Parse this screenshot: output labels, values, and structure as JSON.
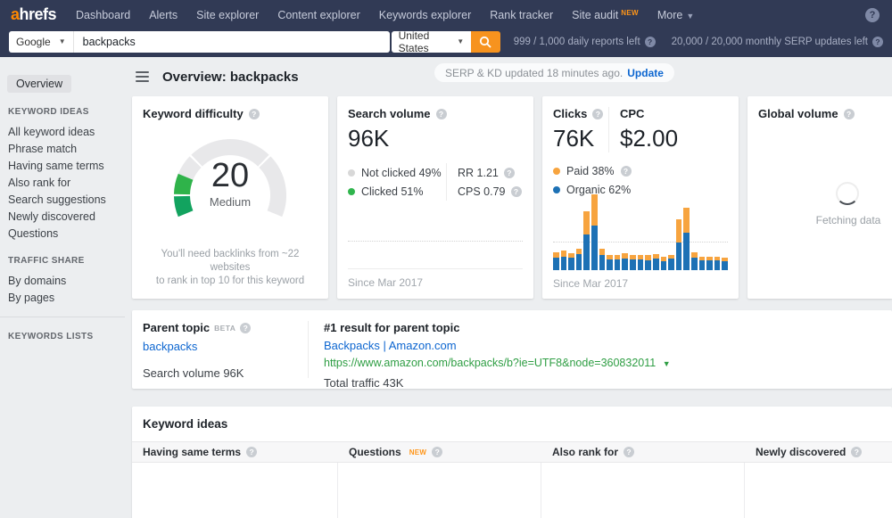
{
  "nav": {
    "logo_accent": "a",
    "logo_rest": "hrefs",
    "items": [
      "Dashboard",
      "Alerts",
      "Site explorer",
      "Content explorer",
      "Keywords explorer",
      "Rank tracker"
    ],
    "site_audit": {
      "label": "Site audit",
      "badge": "NEW"
    },
    "more_label": "More",
    "help": "?"
  },
  "search": {
    "engine": "Google",
    "query": "backpacks",
    "country": "United States",
    "daily_reports_left": "999 / 1,000 daily reports left",
    "serp_updates_left": "20,000 / 20,000 monthly SERP updates left"
  },
  "sidebar": {
    "overview": "Overview",
    "keyword_ideas": {
      "title": "KEYWORD IDEAS",
      "items": [
        "All keyword ideas",
        "Phrase match",
        "Having same terms",
        "Also rank for",
        "Search suggestions",
        "Newly discovered",
        "Questions"
      ]
    },
    "traffic_share": {
      "title": "TRAFFIC SHARE",
      "items": [
        "By domains",
        "By pages"
      ]
    },
    "keywords_lists": {
      "title": "KEYWORDS LISTS"
    }
  },
  "header": {
    "title": "Overview: backpacks",
    "update_notice": "SERP & KD updated 18 minutes ago.",
    "update_action": "Update"
  },
  "cards": {
    "keyword_difficulty": {
      "title": "Keyword difficulty",
      "value": "20",
      "level": "Medium",
      "footer_line1": "You'll need backlinks from ~22 websites",
      "footer_line2": "to rank in top 10 for this keyword"
    },
    "search_volume": {
      "title": "Search volume",
      "value": "96K",
      "not_clicked": "Not clicked 49%",
      "clicked": "Clicked 51%",
      "rr": "RR 1.21",
      "cps": "CPS 0.79",
      "since": "Since Mar 2017"
    },
    "clicks": {
      "title": "Clicks",
      "value": "76K",
      "cpc_title": "CPC",
      "cpc_value": "$2.00",
      "paid": "Paid 38%",
      "organic": "Organic 62%",
      "since": "Since Mar 2017"
    },
    "global_volume": {
      "title": "Global volume",
      "loading": "Fetching data"
    }
  },
  "parent_topic": {
    "title": "Parent topic",
    "beta": "BETA",
    "keyword": "backpacks",
    "search_volume": "Search volume 96K",
    "result_title": "#1 result for parent topic",
    "result_link": "Backpacks | Amazon.com",
    "result_url": "https://www.amazon.com/backpacks/b?ie=UTF8&node=360832011",
    "total_traffic": "Total traffic 43K"
  },
  "keyword_ideas": {
    "title": "Keyword ideas",
    "columns": [
      {
        "label": "Having same terms",
        "badge": ""
      },
      {
        "label": "Questions",
        "badge": "NEW"
      },
      {
        "label": "Also rank for",
        "badge": ""
      },
      {
        "label": "Newly discovered",
        "badge": ""
      }
    ]
  },
  "colors": {
    "accent_orange": "#f7931e",
    "link_blue": "#0d66d0",
    "url_green": "#2f9e44",
    "nav_bg": "#313a55",
    "legend_not_clicked": "#d8d8d8",
    "legend_clicked": "#30b54d",
    "legend_paid": "#f7a43f",
    "legend_organic": "#1d71b5"
  },
  "chart_data": [
    {
      "type": "gauge",
      "title": "Keyword difficulty",
      "value": 20,
      "max": 100,
      "label": "Medium",
      "segment_boundaries": [
        0,
        10,
        30,
        70,
        100
      ],
      "sweep_degrees": 225,
      "track_color": "#e8e8ea",
      "fill_colors": [
        "#12a35f",
        "#2fb34a"
      ]
    },
    {
      "type": "bar",
      "stacked": true,
      "title": "Clicks since Mar 2017",
      "categories": [],
      "series": [
        {
          "name": "Organic",
          "color": "#1d71b5",
          "values": [
            16,
            18,
            16,
            21,
            47,
            59,
            20,
            14,
            14,
            15,
            14,
            14,
            13,
            15,
            12,
            15,
            37,
            49,
            17,
            13,
            13,
            13,
            12
          ]
        },
        {
          "name": "Paid",
          "color": "#f7a43f",
          "values": [
            8,
            8,
            6,
            7,
            31,
            41,
            8,
            6,
            6,
            7,
            6,
            6,
            7,
            6,
            6,
            5,
            30,
            33,
            7,
            5,
            5,
            5,
            4
          ]
        }
      ],
      "ylim": [
        0,
        100
      ],
      "reference_line": 37,
      "legend_position": "top",
      "axes_hidden": true
    }
  ]
}
